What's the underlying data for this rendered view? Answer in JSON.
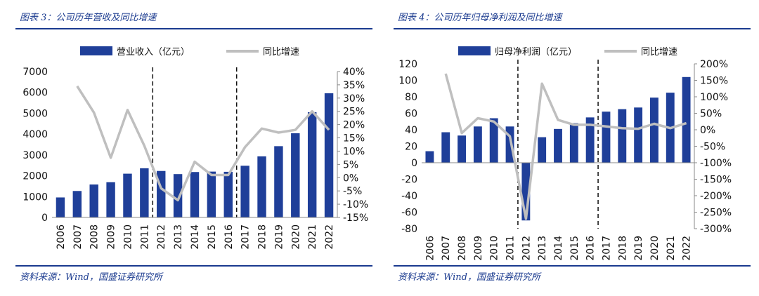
{
  "chart_data": [
    {
      "type": "bar",
      "caption": "图表 3：公司历年营收及同比增速",
      "source": "资料来源：Wind，国盛证券研究所",
      "categories": [
        "2006",
        "2007",
        "2008",
        "2009",
        "2010",
        "2011",
        "2012",
        "2013",
        "2014",
        "2015",
        "2016",
        "2017",
        "2018",
        "2019",
        "2020",
        "2021",
        "2022"
      ],
      "series": [
        {
          "name": "营业收入（亿元）",
          "kind": "bar",
          "axis": "left",
          "color": "#1f3f99",
          "values": [
            960,
            1270,
            1580,
            1690,
            2100,
            2360,
            2230,
            2080,
            2180,
            2200,
            2190,
            2480,
            2930,
            3420,
            4040,
            5050,
            5960
          ]
        },
        {
          "name": "同比增速",
          "kind": "line",
          "axis": "right",
          "color": "#bfbfbf",
          "values": [
            null,
            34.5,
            24.5,
            7.5,
            25.5,
            12.0,
            -4.0,
            -8.5,
            6.0,
            1.0,
            1.0,
            11.5,
            18.5,
            17.0,
            18.0,
            25.0,
            18.0
          ]
        }
      ],
      "y_left": {
        "min": 0,
        "max": 7000,
        "ticks": [
          "0",
          "1000",
          "2000",
          "3000",
          "4000",
          "5000",
          "6000",
          "7000"
        ]
      },
      "y_right": {
        "min": -15,
        "max": 40,
        "ticks": [
          "-15%",
          "-10%",
          "-5%",
          "0%",
          "5%",
          "10%",
          "15%",
          "20%",
          "25%",
          "30%",
          "35%",
          "40%"
        ]
      },
      "dashed_after": [
        "2011",
        "2016"
      ],
      "grid": false,
      "legend_position": "top"
    },
    {
      "type": "bar",
      "caption": "图表 4：公司历年归母净利润及同比增速",
      "source": "资料来源：Wind，国盛证券研究所",
      "categories": [
        "2006",
        "2007",
        "2008",
        "2009",
        "2010",
        "2011",
        "2012",
        "2013",
        "2014",
        "2015",
        "2016",
        "2017",
        "2018",
        "2019",
        "2020",
        "2021",
        "2022"
      ],
      "series": [
        {
          "name": "归母净利润（亿元）",
          "kind": "bar",
          "axis": "left",
          "color": "#1f3f99",
          "values": [
            14,
            37,
            33,
            44,
            54,
            44,
            -70,
            31,
            41,
            48,
            55,
            62,
            65,
            67,
            79,
            85,
            104
          ]
        },
        {
          "name": "同比增速",
          "kind": "line",
          "axis": "right",
          "color": "#bfbfbf",
          "values": [
            null,
            170,
            -10,
            35,
            25,
            -20,
            -270,
            140,
            30,
            15,
            15,
            10,
            5,
            3,
            18,
            5,
            20
          ]
        }
      ],
      "y_left": {
        "min": -80,
        "max": 120,
        "ticks": [
          "-80",
          "-60",
          "-40",
          "-20",
          "0",
          "20",
          "40",
          "60",
          "80",
          "100",
          "120"
        ]
      },
      "y_right": {
        "min": -300,
        "max": 200,
        "ticks": [
          "-300%",
          "-250%",
          "-200%",
          "-150%",
          "-100%",
          "-50%",
          "0%",
          "50%",
          "100%",
          "150%",
          "200%"
        ]
      },
      "dashed_after": [
        "2011",
        "2016"
      ],
      "grid": false,
      "legend_position": "top"
    }
  ]
}
